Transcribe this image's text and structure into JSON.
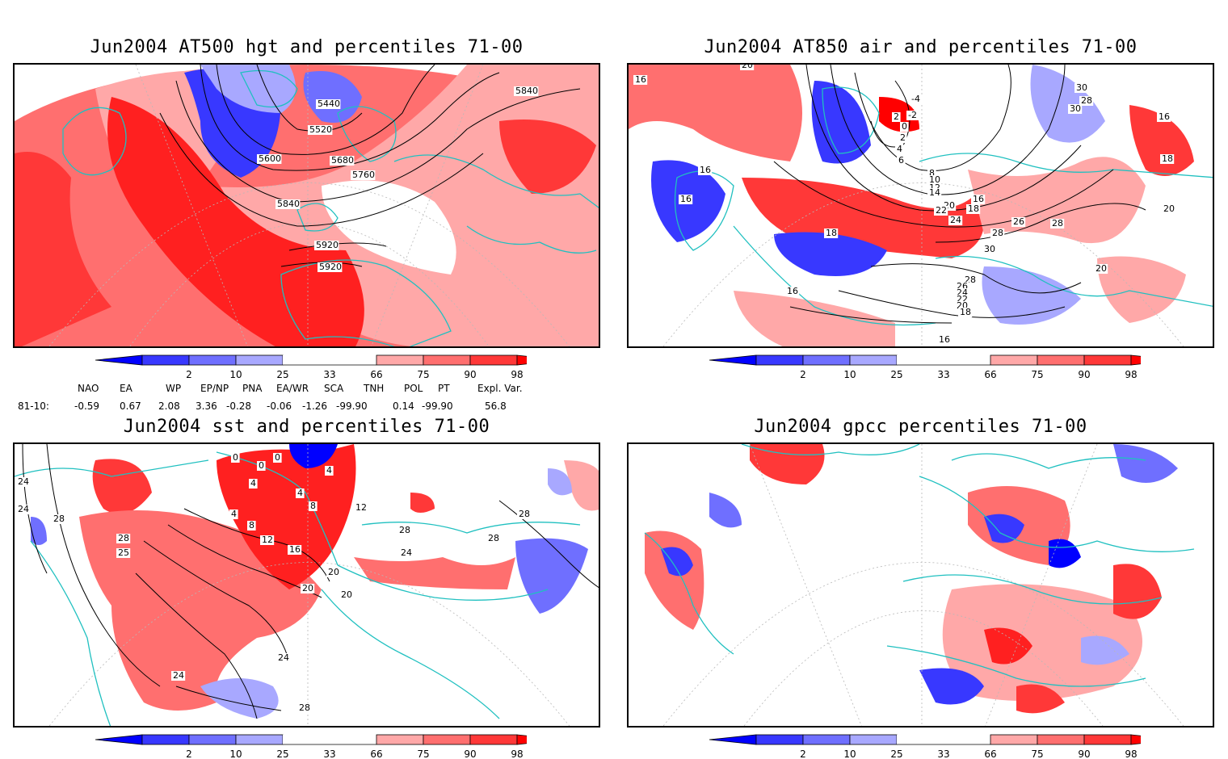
{
  "panels": [
    {
      "id": "hgt",
      "title": "Jun2004 AT500 hgt and percentiles 71-00",
      "contour_labels": [
        "5840",
        "5440",
        "5520",
        "5600",
        "5680",
        "5760",
        "5840",
        "5920",
        "5920"
      ]
    },
    {
      "id": "air",
      "title": "Jun2004 AT850 air and percentiles 71-00",
      "contour_labels": [
        "16",
        "20",
        "-4",
        "-2",
        "2",
        "0",
        "2",
        "4",
        "6",
        "8",
        "10",
        "12",
        "14",
        "16",
        "18",
        "20",
        "22",
        "24",
        "26",
        "28",
        "30",
        "28",
        "26",
        "24",
        "22",
        "20",
        "18",
        "16",
        "18",
        "16",
        "16",
        "16",
        "18",
        "30",
        "28",
        "30",
        "20",
        "16",
        "20",
        "28"
      ]
    },
    {
      "id": "sst",
      "title": "Jun2004 sst and percentiles 71-00",
      "contour_labels": [
        "24",
        "24",
        "28",
        "28",
        "25",
        "0",
        "4",
        "0",
        "0",
        "4",
        "4",
        "8",
        "4",
        "8",
        "12",
        "12",
        "16",
        "20",
        "20",
        "24",
        "20",
        "28",
        "24",
        "28",
        "28",
        "28",
        "24"
      ]
    },
    {
      "id": "gpcc",
      "title": "Jun2004 gpcc percentiles 71-00",
      "contour_labels": []
    }
  ],
  "colorbar": {
    "ticks": [
      "2",
      "10",
      "25",
      "33",
      "66",
      "75",
      "90",
      "98"
    ],
    "colors": {
      "blue_extreme": "#0000ff",
      "blue_strong": "#3838ff",
      "blue_mid": "#6f6fff",
      "blue_light": "#a8a8ff",
      "neutral": "#ffffff",
      "red_light": "#ffa8a8",
      "red_mid": "#ff6f6f",
      "red_strong": "#ff3838",
      "red_extreme": "#ff0000"
    }
  },
  "indices": {
    "headers": [
      "NAO",
      "EA",
      "WP",
      "EP/NP",
      "PNA",
      "EA/WR",
      "SCA",
      "TNH",
      "POL",
      "PT",
      "Expl. Var."
    ],
    "row_label": "81-10:",
    "values": [
      "-0.59",
      "0.67",
      "2.08",
      "3.36",
      "-0.28",
      "-0.06",
      "-1.26",
      "-99.90",
      "0.14",
      "-99.90",
      "56.8"
    ]
  },
  "map_colors": {
    "coastline": "#20c0c0",
    "grid": "#b0b0b0",
    "contour": "#000000"
  }
}
